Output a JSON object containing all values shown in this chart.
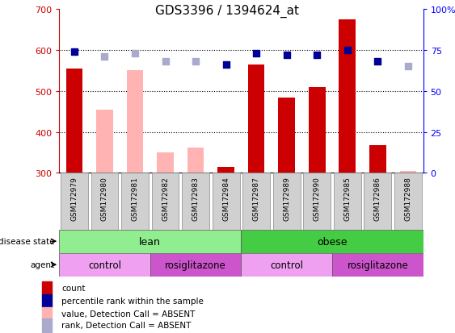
{
  "title": "GDS3396 / 1394624_at",
  "samples": [
    "GSM172979",
    "GSM172980",
    "GSM172981",
    "GSM172982",
    "GSM172983",
    "GSM172984",
    "GSM172987",
    "GSM172989",
    "GSM172990",
    "GSM172985",
    "GSM172986",
    "GSM172988"
  ],
  "count_present": [
    555,
    null,
    null,
    null,
    null,
    315,
    565,
    483,
    510,
    675,
    368,
    null
  ],
  "count_absent": [
    null,
    455,
    550,
    350,
    362,
    null,
    null,
    null,
    null,
    null,
    null,
    305
  ],
  "pct_present": [
    74,
    null,
    null,
    null,
    null,
    66,
    73,
    72,
    72,
    75,
    68,
    null
  ],
  "pct_absent": [
    null,
    71,
    73,
    68,
    68,
    null,
    null,
    null,
    null,
    null,
    null,
    65
  ],
  "ylim_left": [
    300,
    700
  ],
  "ylim_right": [
    0,
    100
  ],
  "yticks_left": [
    300,
    400,
    500,
    600,
    700
  ],
  "yticks_right": [
    0,
    25,
    50,
    75,
    100
  ],
  "bar_color_present": "#CC0000",
  "bar_color_absent": "#FFB3B3",
  "dot_color_present": "#000099",
  "dot_color_absent": "#AAAACC",
  "lean_color": "#90EE90",
  "obese_color": "#44CC44",
  "control_color_light": "#F0A0F0",
  "control_color_dark": "#CC55CC",
  "legend_items": [
    "count",
    "percentile rank within the sample",
    "value, Detection Call = ABSENT",
    "rank, Detection Call = ABSENT"
  ]
}
